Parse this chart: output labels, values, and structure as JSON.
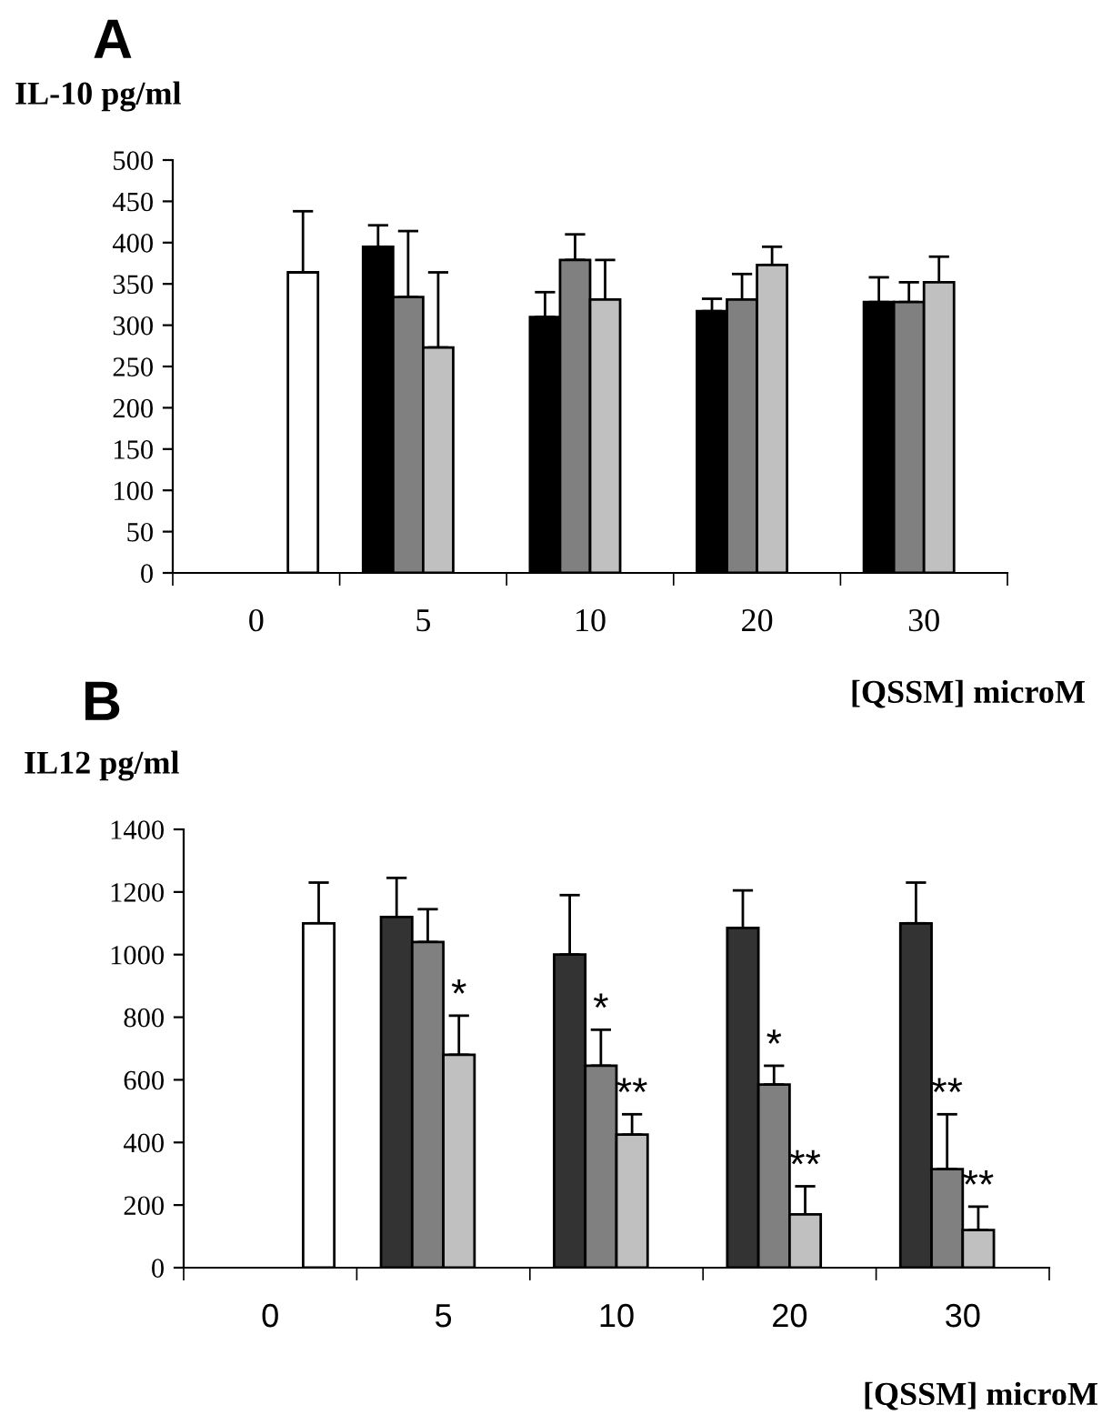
{
  "chart_data": [
    {
      "type": "bar",
      "title": "A",
      "ylabel": "IL-10 pg/ml",
      "xlabel": "[QSSM] microM",
      "categories": [
        "0",
        "5",
        "10",
        "20",
        "30"
      ],
      "ylim": [
        0,
        500
      ],
      "yticks": [
        0,
        50,
        100,
        150,
        200,
        250,
        300,
        350,
        400,
        450,
        500
      ],
      "grid": false,
      "series": [
        {
          "color": "#ffffff",
          "values": [
            364,
            null,
            null,
            null,
            null
          ],
          "errors": [
            [
              364,
              438
            ],
            null,
            null,
            null,
            null
          ]
        },
        {
          "color": "#000000",
          "values": [
            null,
            395,
            310,
            317,
            328
          ],
          "errors": [
            null,
            [
              395,
              421
            ],
            [
              310,
              340
            ],
            [
              317,
              332
            ],
            [
              328,
              358
            ]
          ]
        },
        {
          "color": "#808080",
          "values": [
            null,
            334,
            379,
            331,
            328
          ],
          "errors": [
            null,
            [
              334,
              414
            ],
            [
              379,
              410
            ],
            [
              331,
              362
            ],
            [
              328,
              352
            ]
          ]
        },
        {
          "color": "#c0c0c0",
          "values": [
            null,
            273,
            331,
            373,
            352
          ],
          "errors": [
            null,
            [
              273,
              364
            ],
            [
              331,
              379
            ],
            [
              373,
              395
            ],
            [
              352,
              383
            ]
          ]
        }
      ]
    },
    {
      "type": "bar",
      "title": "B",
      "ylabel": "IL12 pg/ml",
      "xlabel": "[QSSM] microM",
      "categories": [
        "0",
        "5",
        "10",
        "20",
        "30"
      ],
      "ylim": [
        0,
        1400
      ],
      "yticks": [
        0,
        200,
        400,
        600,
        800,
        1000,
        1200,
        1400
      ],
      "grid": false,
      "series": [
        {
          "color": "#ffffff",
          "values": [
            1100,
            null,
            null,
            null,
            null
          ],
          "errors": [
            [
              1100,
              1230
            ],
            null,
            null,
            null,
            null
          ]
        },
        {
          "color": "#333333",
          "values": [
            null,
            1120,
            1000,
            1085,
            1100
          ],
          "errors": [
            null,
            [
              1120,
              1245
            ],
            [
              1000,
              1190
            ],
            [
              1085,
              1205
            ],
            [
              1100,
              1230
            ]
          ]
        },
        {
          "color": "#808080",
          "values": [
            null,
            1040,
            645,
            585,
            315
          ],
          "errors": [
            null,
            [
              1040,
              1145
            ],
            [
              645,
              760
            ],
            [
              585,
              645
            ],
            [
              315,
              490
            ]
          ]
        },
        {
          "color": "#c0c0c0",
          "values": [
            null,
            680,
            425,
            170,
            120
          ],
          "errors": [
            null,
            [
              680,
              805
            ],
            [
              425,
              490
            ],
            [
              170,
              260
            ],
            [
              120,
              195
            ]
          ]
        }
      ],
      "annotations": [
        {
          "text": "*",
          "x": "5",
          "y": 805
        },
        {
          "text": "*",
          "x": "10",
          "y": 760
        },
        {
          "text": "**",
          "x": "10",
          "y": 490
        },
        {
          "text": "*",
          "x": "20",
          "y": 645
        },
        {
          "text": "**",
          "x": "20",
          "y": 260
        },
        {
          "text": "**",
          "x": "30",
          "y": 490
        },
        {
          "text": "**",
          "x": "30",
          "y": 195
        }
      ]
    }
  ]
}
